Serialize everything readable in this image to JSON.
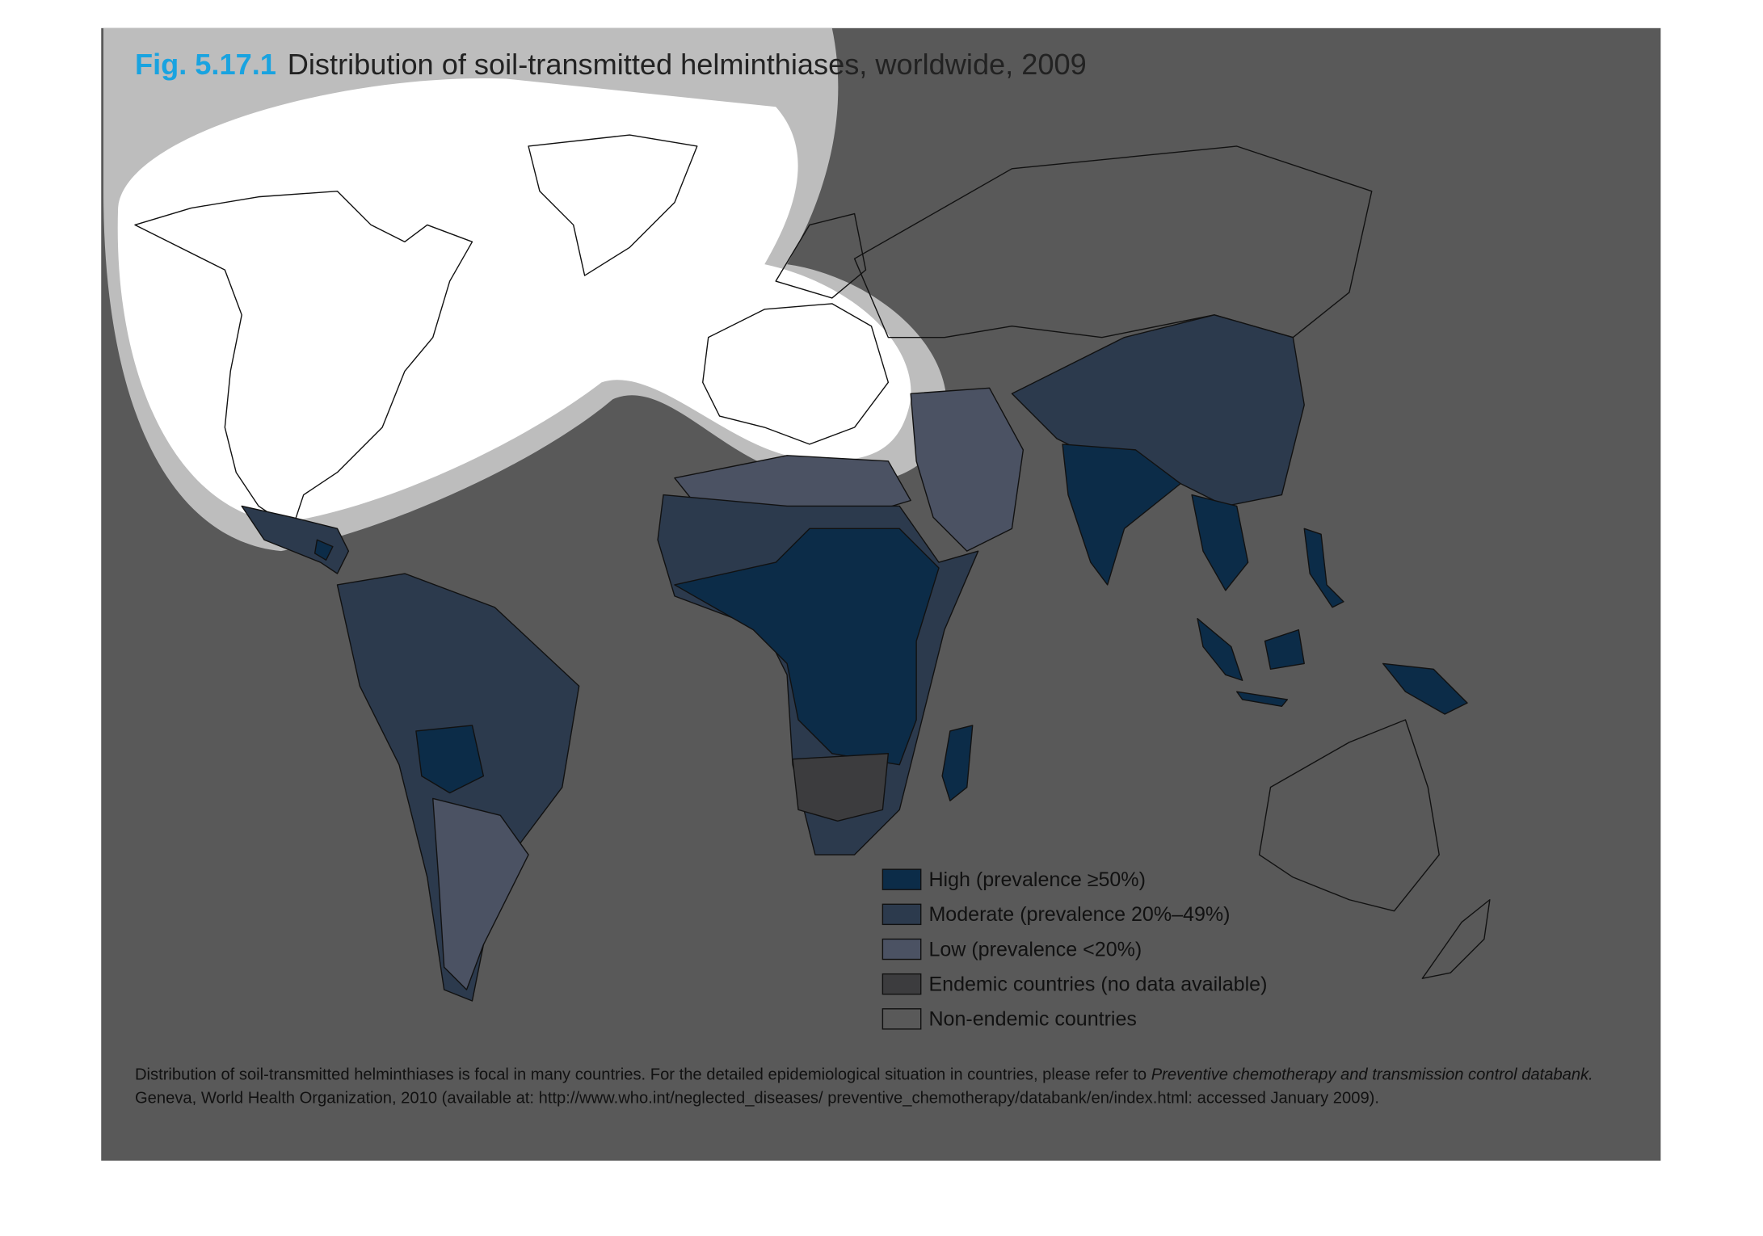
{
  "header": {
    "fig_label": "Fig. 5.17.1",
    "title": "Distribution of soil-transmitted helminthiases, worldwide, 2009"
  },
  "legend": [
    {
      "label": "High (prevalence ≥50%)",
      "color": "#0c2c48"
    },
    {
      "label": "Moderate (prevalence 20%–49%)",
      "color": "#2c3a4d"
    },
    {
      "label": "Low (prevalence <20%)",
      "color": "#4b5263"
    },
    {
      "label": "Endemic countries (no data available)",
      "color": "#3c3c3e"
    },
    {
      "label": "Non-endemic countries",
      "color": "#595959"
    }
  ],
  "footnote": {
    "line1": "Distribution of soil-transmitted helminthiases is focal in many countries. For the detailed epidemiological situation in countries, please refer to",
    "line1_italic": "Preventive chemotherapy and transmission control databank.",
    "line2": "Geneva, World Health Organization, 2010 (available at: http://www.who.int/neglected_diseases/ preventive_chemotherapy/databank/en/index.html: accessed January 2009)."
  }
}
